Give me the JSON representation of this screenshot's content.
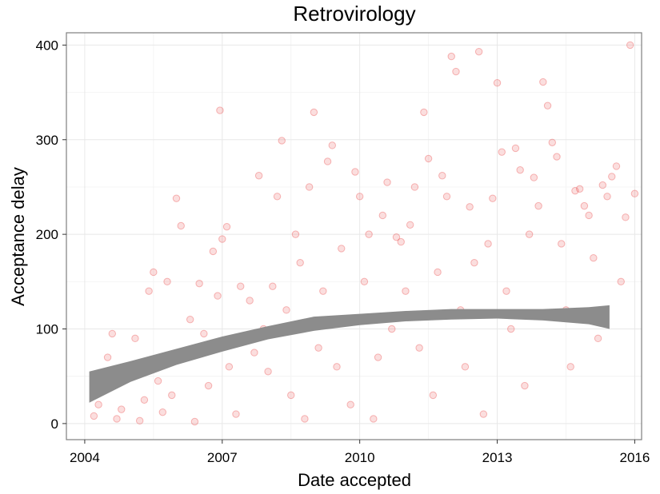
{
  "chart_data": {
    "type": "scatter",
    "title": "Retrovirology",
    "xlabel": "Date accepted",
    "ylabel": "Acceptance delay",
    "x_ticks": [
      "2004",
      "2007",
      "2010",
      "2013",
      "2016"
    ],
    "y_ticks": [
      "0",
      "100",
      "200",
      "300",
      "400"
    ],
    "xlim": [
      2003.6,
      2016.15
    ],
    "ylim": [
      -17,
      413
    ],
    "grid": true,
    "point_color": "#e8393a",
    "band_color": "#8c8c8c",
    "points": [
      [
        2004.2,
        8
      ],
      [
        2004.3,
        20
      ],
      [
        2004.4,
        35
      ],
      [
        2004.5,
        70
      ],
      [
        2004.6,
        95
      ],
      [
        2004.7,
        5
      ],
      [
        2004.8,
        15
      ],
      [
        2004.9,
        50
      ],
      [
        2005.0,
        60
      ],
      [
        2005.1,
        90
      ],
      [
        2005.2,
        3
      ],
      [
        2005.3,
        25
      ],
      [
        2005.4,
        140
      ],
      [
        2005.5,
        160
      ],
      [
        2005.6,
        45
      ],
      [
        2005.7,
        12
      ],
      [
        2005.8,
        150
      ],
      [
        2005.9,
        30
      ],
      [
        2006.0,
        238
      ],
      [
        2006.1,
        209
      ],
      [
        2006.2,
        70
      ],
      [
        2006.3,
        110
      ],
      [
        2006.4,
        2
      ],
      [
        2006.5,
        148
      ],
      [
        2006.6,
        95
      ],
      [
        2006.7,
        40
      ],
      [
        2006.8,
        182
      ],
      [
        2006.9,
        135
      ],
      [
        2007.0,
        195
      ],
      [
        2007.1,
        208
      ],
      [
        2006.95,
        331
      ],
      [
        2007.15,
        60
      ],
      [
        2007.3,
        10
      ],
      [
        2007.4,
        145
      ],
      [
        2007.5,
        90
      ],
      [
        2007.6,
        130
      ],
      [
        2007.7,
        75
      ],
      [
        2007.8,
        262
      ],
      [
        2007.9,
        100
      ],
      [
        2008.0,
        55
      ],
      [
        2008.1,
        145
      ],
      [
        2008.2,
        240
      ],
      [
        2008.3,
        299
      ],
      [
        2008.4,
        120
      ],
      [
        2008.5,
        30
      ],
      [
        2008.6,
        200
      ],
      [
        2008.7,
        170
      ],
      [
        2008.8,
        5
      ],
      [
        2008.9,
        250
      ],
      [
        2009.0,
        329
      ],
      [
        2009.1,
        80
      ],
      [
        2009.2,
        140
      ],
      [
        2009.3,
        277
      ],
      [
        2009.4,
        294
      ],
      [
        2009.5,
        60
      ],
      [
        2009.6,
        185
      ],
      [
        2009.7,
        110
      ],
      [
        2009.8,
        20
      ],
      [
        2009.9,
        266
      ],
      [
        2010.0,
        240
      ],
      [
        2010.1,
        150
      ],
      [
        2010.2,
        200
      ],
      [
        2010.3,
        5
      ],
      [
        2010.4,
        70
      ],
      [
        2010.5,
        220
      ],
      [
        2010.6,
        255
      ],
      [
        2010.7,
        100
      ],
      [
        2010.8,
        197
      ],
      [
        2010.9,
        192
      ],
      [
        2011.0,
        140
      ],
      [
        2011.1,
        210
      ],
      [
        2011.2,
        250
      ],
      [
        2011.3,
        80
      ],
      [
        2011.4,
        329
      ],
      [
        2011.5,
        280
      ],
      [
        2011.6,
        30
      ],
      [
        2011.7,
        160
      ],
      [
        2011.8,
        262
      ],
      [
        2011.9,
        240
      ],
      [
        2012.0,
        388
      ],
      [
        2012.1,
        372
      ],
      [
        2012.2,
        120
      ],
      [
        2012.3,
        60
      ],
      [
        2012.4,
        229
      ],
      [
        2012.5,
        170
      ],
      [
        2012.6,
        393
      ],
      [
        2012.7,
        10
      ],
      [
        2012.8,
        190
      ],
      [
        2012.9,
        238
      ],
      [
        2013.0,
        360
      ],
      [
        2013.1,
        287
      ],
      [
        2013.2,
        140
      ],
      [
        2013.3,
        100
      ],
      [
        2013.4,
        291
      ],
      [
        2013.5,
        268
      ],
      [
        2013.6,
        40
      ],
      [
        2013.7,
        200
      ],
      [
        2013.8,
        260
      ],
      [
        2013.9,
        230
      ],
      [
        2014.0,
        361
      ],
      [
        2014.1,
        336
      ],
      [
        2014.2,
        297
      ],
      [
        2014.3,
        282
      ],
      [
        2014.4,
        190
      ],
      [
        2014.5,
        120
      ],
      [
        2014.6,
        60
      ],
      [
        2014.7,
        246
      ],
      [
        2014.8,
        248
      ],
      [
        2014.9,
        230
      ],
      [
        2015.0,
        220
      ],
      [
        2015.1,
        175
      ],
      [
        2015.2,
        90
      ],
      [
        2015.3,
        252
      ],
      [
        2015.4,
        240
      ],
      [
        2015.5,
        261
      ],
      [
        2015.6,
        272
      ],
      [
        2015.7,
        150
      ],
      [
        2015.8,
        218
      ],
      [
        2015.9,
        400
      ],
      [
        2016.0,
        243
      ]
    ],
    "smooth_band": {
      "x": [
        2004.1,
        2005,
        2006,
        2007,
        2008,
        2009,
        2010,
        2011,
        2012,
        2013,
        2014,
        2015,
        2015.45
      ],
      "lower": [
        22,
        44,
        62,
        76,
        89,
        98,
        104,
        108,
        110,
        111,
        109,
        105,
        100
      ],
      "upper": [
        55,
        66,
        79,
        92,
        103,
        113,
        116,
        119,
        121,
        121,
        121,
        123,
        125
      ]
    }
  }
}
